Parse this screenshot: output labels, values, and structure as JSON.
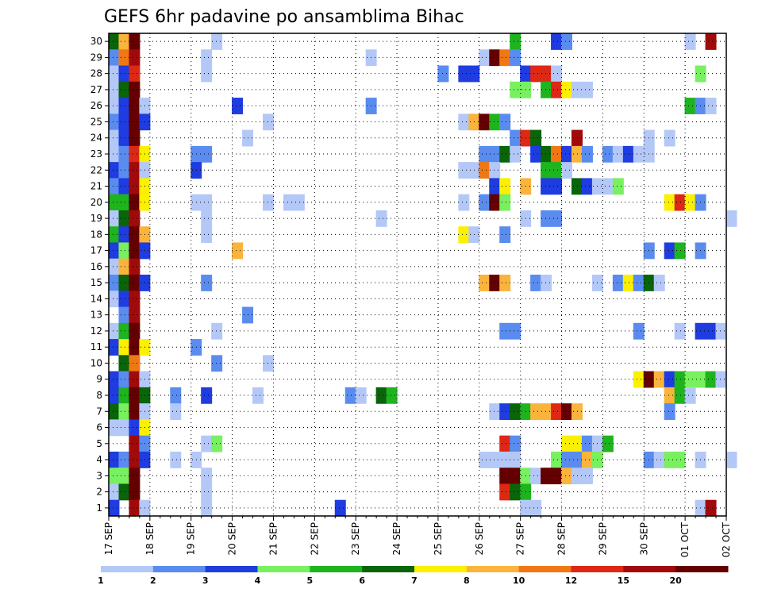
{
  "chart_data": {
    "type": "heatmap",
    "title": "GEFS 6hr padavine po ansamblima Bihac",
    "xlabel": "",
    "ylabel": "",
    "x_ticks": [
      "17 SEP",
      "18 SEP",
      "19 SEP",
      "20 SEP",
      "21 SEP",
      "22 SEP",
      "23 SEP",
      "24 SEP",
      "25 SEP",
      "26 SEP",
      "27 SEP",
      "28 SEP",
      "29 SEP",
      "30 SEP",
      "01 OCT",
      "02 OCT"
    ],
    "y_ticks": [
      1,
      2,
      3,
      4,
      5,
      6,
      7,
      8,
      9,
      10,
      11,
      12,
      13,
      14,
      15,
      16,
      17,
      18,
      19,
      20,
      21,
      22,
      23,
      24,
      25,
      26,
      27,
      28,
      29,
      30
    ],
    "xlim": [
      0,
      60
    ],
    "ylim": [
      0.5,
      30.5
    ],
    "time_step_hours": 6,
    "grid": true,
    "colorbar": {
      "placement": "bottom",
      "labels": [
        "1",
        "2",
        "3",
        "4",
        "5",
        "6",
        "7",
        "8",
        "10",
        "12",
        "15",
        "20"
      ],
      "colors": [
        "#b4c8f8",
        "#5a8cf0",
        "#1e3ce0",
        "#78f060",
        "#1eb41e",
        "#0a640a",
        "#faf000",
        "#fab43c",
        "#f07814",
        "#dc2814",
        "#a00a0a",
        "#640000"
      ]
    },
    "cells": [
      [
        30,
        0,
        5
      ],
      [
        30,
        1,
        7
      ],
      [
        30,
        2,
        11
      ],
      [
        30,
        10,
        0
      ],
      [
        30,
        39,
        4
      ],
      [
        30,
        43,
        2
      ],
      [
        30,
        44,
        1
      ],
      [
        30,
        56,
        0
      ],
      [
        30,
        58,
        10
      ],
      [
        29,
        0,
        1
      ],
      [
        29,
        1,
        8
      ],
      [
        29,
        2,
        10
      ],
      [
        29,
        9,
        0
      ],
      [
        29,
        25,
        0
      ],
      [
        29,
        36,
        0
      ],
      [
        29,
        37,
        11
      ],
      [
        29,
        38,
        8
      ],
      [
        29,
        39,
        1
      ],
      [
        28,
        0,
        0
      ],
      [
        28,
        1,
        2
      ],
      [
        28,
        2,
        9
      ],
      [
        28,
        9,
        0
      ],
      [
        28,
        32,
        1
      ],
      [
        28,
        34,
        2
      ],
      [
        28,
        35,
        2
      ],
      [
        28,
        40,
        2
      ],
      [
        28,
        41,
        9
      ],
      [
        28,
        42,
        9
      ],
      [
        28,
        43,
        0
      ],
      [
        28,
        57,
        3
      ],
      [
        27,
        0,
        0
      ],
      [
        27,
        1,
        5
      ],
      [
        27,
        2,
        11
      ],
      [
        27,
        39,
        3
      ],
      [
        27,
        40,
        3
      ],
      [
        27,
        42,
        4
      ],
      [
        27,
        43,
        9
      ],
      [
        27,
        44,
        6
      ],
      [
        27,
        45,
        0
      ],
      [
        27,
        46,
        0
      ],
      [
        26,
        0,
        0
      ],
      [
        26,
        1,
        2
      ],
      [
        26,
        2,
        11
      ],
      [
        26,
        3,
        0
      ],
      [
        26,
        12,
        2
      ],
      [
        26,
        25,
        1
      ],
      [
        26,
        56,
        4
      ],
      [
        26,
        57,
        1
      ],
      [
        26,
        58,
        0
      ],
      [
        25,
        0,
        1
      ],
      [
        25,
        1,
        2
      ],
      [
        25,
        2,
        11
      ],
      [
        25,
        3,
        2
      ],
      [
        25,
        15,
        0
      ],
      [
        25,
        34,
        0
      ],
      [
        25,
        35,
        7
      ],
      [
        25,
        36,
        11
      ],
      [
        25,
        37,
        4
      ],
      [
        25,
        38,
        1
      ],
      [
        24,
        0,
        0
      ],
      [
        24,
        1,
        2
      ],
      [
        24,
        2,
        11
      ],
      [
        24,
        13,
        0
      ],
      [
        24,
        39,
        1
      ],
      [
        24,
        40,
        9
      ],
      [
        24,
        41,
        5
      ],
      [
        24,
        45,
        10
      ],
      [
        24,
        52,
        0
      ],
      [
        24,
        54,
        0
      ],
      [
        23,
        0,
        0
      ],
      [
        23,
        1,
        1
      ],
      [
        23,
        2,
        9
      ],
      [
        23,
        3,
        6
      ],
      [
        23,
        8,
        1
      ],
      [
        23,
        9,
        1
      ],
      [
        23,
        36,
        1
      ],
      [
        23,
        37,
        1
      ],
      [
        23,
        38,
        5
      ],
      [
        23,
        39,
        0
      ],
      [
        23,
        41,
        2
      ],
      [
        23,
        42,
        5
      ],
      [
        23,
        43,
        8
      ],
      [
        23,
        44,
        2
      ],
      [
        23,
        45,
        7
      ],
      [
        23,
        46,
        1
      ],
      [
        23,
        48,
        1
      ],
      [
        23,
        49,
        0
      ],
      [
        23,
        50,
        2
      ],
      [
        23,
        51,
        0
      ],
      [
        23,
        52,
        0
      ],
      [
        22,
        0,
        2
      ],
      [
        22,
        1,
        1
      ],
      [
        22,
        2,
        10
      ],
      [
        22,
        3,
        0
      ],
      [
        22,
        8,
        2
      ],
      [
        22,
        34,
        0
      ],
      [
        22,
        35,
        0
      ],
      [
        22,
        36,
        8
      ],
      [
        22,
        37,
        0
      ],
      [
        22,
        42,
        4
      ],
      [
        22,
        43,
        4
      ],
      [
        22,
        44,
        0
      ],
      [
        21,
        0,
        1
      ],
      [
        21,
        1,
        2
      ],
      [
        21,
        2,
        10
      ],
      [
        21,
        3,
        6
      ],
      [
        21,
        37,
        2
      ],
      [
        21,
        38,
        6
      ],
      [
        21,
        40,
        7
      ],
      [
        21,
        42,
        2
      ],
      [
        21,
        43,
        2
      ],
      [
        21,
        45,
        5
      ],
      [
        21,
        46,
        2
      ],
      [
        21,
        47,
        0
      ],
      [
        21,
        48,
        0
      ],
      [
        21,
        49,
        3
      ],
      [
        20,
        0,
        4
      ],
      [
        20,
        1,
        4
      ],
      [
        20,
        2,
        11
      ],
      [
        20,
        3,
        6
      ],
      [
        20,
        8,
        0
      ],
      [
        20,
        9,
        0
      ],
      [
        20,
        15,
        0
      ],
      [
        20,
        17,
        0
      ],
      [
        20,
        18,
        0
      ],
      [
        20,
        34,
        0
      ],
      [
        20,
        36,
        1
      ],
      [
        20,
        37,
        11
      ],
      [
        20,
        38,
        3
      ],
      [
        20,
        54,
        6
      ],
      [
        20,
        55,
        9
      ],
      [
        20,
        56,
        6
      ],
      [
        20,
        57,
        1
      ],
      [
        19,
        0,
        0
      ],
      [
        19,
        1,
        5
      ],
      [
        19,
        2,
        10
      ],
      [
        19,
        9,
        0
      ],
      [
        19,
        26,
        0
      ],
      [
        19,
        40,
        0
      ],
      [
        19,
        42,
        1
      ],
      [
        19,
        43,
        1
      ],
      [
        19,
        60,
        0
      ],
      [
        18,
        0,
        4
      ],
      [
        18,
        1,
        2
      ],
      [
        18,
        2,
        11
      ],
      [
        18,
        3,
        7
      ],
      [
        18,
        9,
        0
      ],
      [
        18,
        34,
        6
      ],
      [
        18,
        35,
        0
      ],
      [
        18,
        38,
        1
      ],
      [
        17,
        0,
        2
      ],
      [
        17,
        1,
        3
      ],
      [
        17,
        2,
        11
      ],
      [
        17,
        3,
        2
      ],
      [
        17,
        12,
        7
      ],
      [
        17,
        52,
        1
      ],
      [
        17,
        54,
        2
      ],
      [
        17,
        55,
        4
      ],
      [
        17,
        57,
        1
      ],
      [
        16,
        0,
        0
      ],
      [
        16,
        1,
        7
      ],
      [
        16,
        2,
        10
      ],
      [
        15,
        0,
        1
      ],
      [
        15,
        1,
        5
      ],
      [
        15,
        2,
        11
      ],
      [
        15,
        3,
        2
      ],
      [
        15,
        9,
        1
      ],
      [
        15,
        36,
        7
      ],
      [
        15,
        37,
        11
      ],
      [
        15,
        38,
        7
      ],
      [
        15,
        41,
        1
      ],
      [
        15,
        42,
        0
      ],
      [
        15,
        47,
        0
      ],
      [
        15,
        49,
        1
      ],
      [
        15,
        50,
        6
      ],
      [
        15,
        51,
        1
      ],
      [
        15,
        52,
        5
      ],
      [
        15,
        53,
        0
      ],
      [
        14,
        0,
        0
      ],
      [
        14,
        1,
        2
      ],
      [
        14,
        2,
        10
      ],
      [
        13,
        1,
        1
      ],
      [
        13,
        2,
        10
      ],
      [
        13,
        13,
        1
      ],
      [
        12,
        0,
        0
      ],
      [
        12,
        1,
        4
      ],
      [
        12,
        2,
        11
      ],
      [
        12,
        10,
        0
      ],
      [
        12,
        38,
        1
      ],
      [
        12,
        39,
        1
      ],
      [
        12,
        51,
        1
      ],
      [
        12,
        55,
        0
      ],
      [
        12,
        57,
        2
      ],
      [
        12,
        58,
        2
      ],
      [
        12,
        59,
        0
      ],
      [
        11,
        0,
        2
      ],
      [
        11,
        1,
        6
      ],
      [
        11,
        2,
        11
      ],
      [
        11,
        3,
        6
      ],
      [
        11,
        8,
        1
      ],
      [
        10,
        1,
        5
      ],
      [
        10,
        2,
        8
      ],
      [
        10,
        10,
        1
      ],
      [
        10,
        15,
        0
      ],
      [
        9,
        0,
        2
      ],
      [
        9,
        1,
        1
      ],
      [
        9,
        2,
        10
      ],
      [
        9,
        3,
        0
      ],
      [
        9,
        51,
        6
      ],
      [
        9,
        52,
        11
      ],
      [
        9,
        53,
        7
      ],
      [
        9,
        54,
        2
      ],
      [
        9,
        55,
        4
      ],
      [
        9,
        56,
        3
      ],
      [
        9,
        57,
        3
      ],
      [
        9,
        58,
        4
      ],
      [
        9,
        59,
        0
      ],
      [
        8,
        0,
        2
      ],
      [
        8,
        1,
        4
      ],
      [
        8,
        2,
        11
      ],
      [
        8,
        3,
        5
      ],
      [
        8,
        6,
        1
      ],
      [
        8,
        9,
        2
      ],
      [
        8,
        14,
        0
      ],
      [
        8,
        23,
        1
      ],
      [
        8,
        24,
        0
      ],
      [
        8,
        26,
        5
      ],
      [
        8,
        27,
        4
      ],
      [
        8,
        54,
        7
      ],
      [
        8,
        55,
        4
      ],
      [
        8,
        56,
        0
      ],
      [
        7,
        0,
        5
      ],
      [
        7,
        1,
        3
      ],
      [
        7,
        2,
        11
      ],
      [
        7,
        3,
        0
      ],
      [
        7,
        6,
        0
      ],
      [
        7,
        37,
        0
      ],
      [
        7,
        38,
        2
      ],
      [
        7,
        39,
        5
      ],
      [
        7,
        40,
        4
      ],
      [
        7,
        41,
        7
      ],
      [
        7,
        42,
        7
      ],
      [
        7,
        43,
        9
      ],
      [
        7,
        44,
        11
      ],
      [
        7,
        45,
        7
      ],
      [
        7,
        54,
        1
      ],
      [
        6,
        0,
        0
      ],
      [
        6,
        1,
        0
      ],
      [
        6,
        2,
        2
      ],
      [
        6,
        3,
        6
      ],
      [
        5,
        2,
        10
      ],
      [
        5,
        3,
        1
      ],
      [
        5,
        9,
        0
      ],
      [
        5,
        10,
        3
      ],
      [
        5,
        38,
        9
      ],
      [
        5,
        39,
        1
      ],
      [
        5,
        44,
        6
      ],
      [
        5,
        45,
        6
      ],
      [
        5,
        46,
        1
      ],
      [
        5,
        47,
        0
      ],
      [
        5,
        48,
        4
      ],
      [
        4,
        0,
        2
      ],
      [
        4,
        1,
        1
      ],
      [
        4,
        2,
        10
      ],
      [
        4,
        3,
        2
      ],
      [
        4,
        6,
        0
      ],
      [
        4,
        8,
        0
      ],
      [
        4,
        36,
        0
      ],
      [
        4,
        37,
        0
      ],
      [
        4,
        38,
        0
      ],
      [
        4,
        39,
        0
      ],
      [
        4,
        43,
        3
      ],
      [
        4,
        44,
        1
      ],
      [
        4,
        45,
        1
      ],
      [
        4,
        46,
        7
      ],
      [
        4,
        47,
        3
      ],
      [
        4,
        52,
        1
      ],
      [
        4,
        53,
        0
      ],
      [
        4,
        54,
        3
      ],
      [
        4,
        55,
        3
      ],
      [
        4,
        57,
        0
      ],
      [
        4,
        60,
        0
      ],
      [
        3,
        0,
        3
      ],
      [
        3,
        1,
        3
      ],
      [
        3,
        2,
        11
      ],
      [
        3,
        9,
        0
      ],
      [
        3,
        38,
        11
      ],
      [
        3,
        39,
        11
      ],
      [
        3,
        40,
        3
      ],
      [
        3,
        41,
        0
      ],
      [
        3,
        42,
        11
      ],
      [
        3,
        43,
        11
      ],
      [
        3,
        44,
        7
      ],
      [
        3,
        45,
        0
      ],
      [
        3,
        46,
        0
      ],
      [
        2,
        0,
        0
      ],
      [
        2,
        1,
        5
      ],
      [
        2,
        2,
        11
      ],
      [
        2,
        9,
        0
      ],
      [
        2,
        38,
        9
      ],
      [
        2,
        39,
        5
      ],
      [
        2,
        40,
        4
      ],
      [
        1,
        0,
        2
      ],
      [
        1,
        2,
        10
      ],
      [
        1,
        3,
        0
      ],
      [
        1,
        9,
        0
      ],
      [
        1,
        22,
        2
      ],
      [
        1,
        40,
        0
      ],
      [
        1,
        41,
        0
      ],
      [
        1,
        57,
        0
      ],
      [
        1,
        58,
        10
      ]
    ]
  }
}
